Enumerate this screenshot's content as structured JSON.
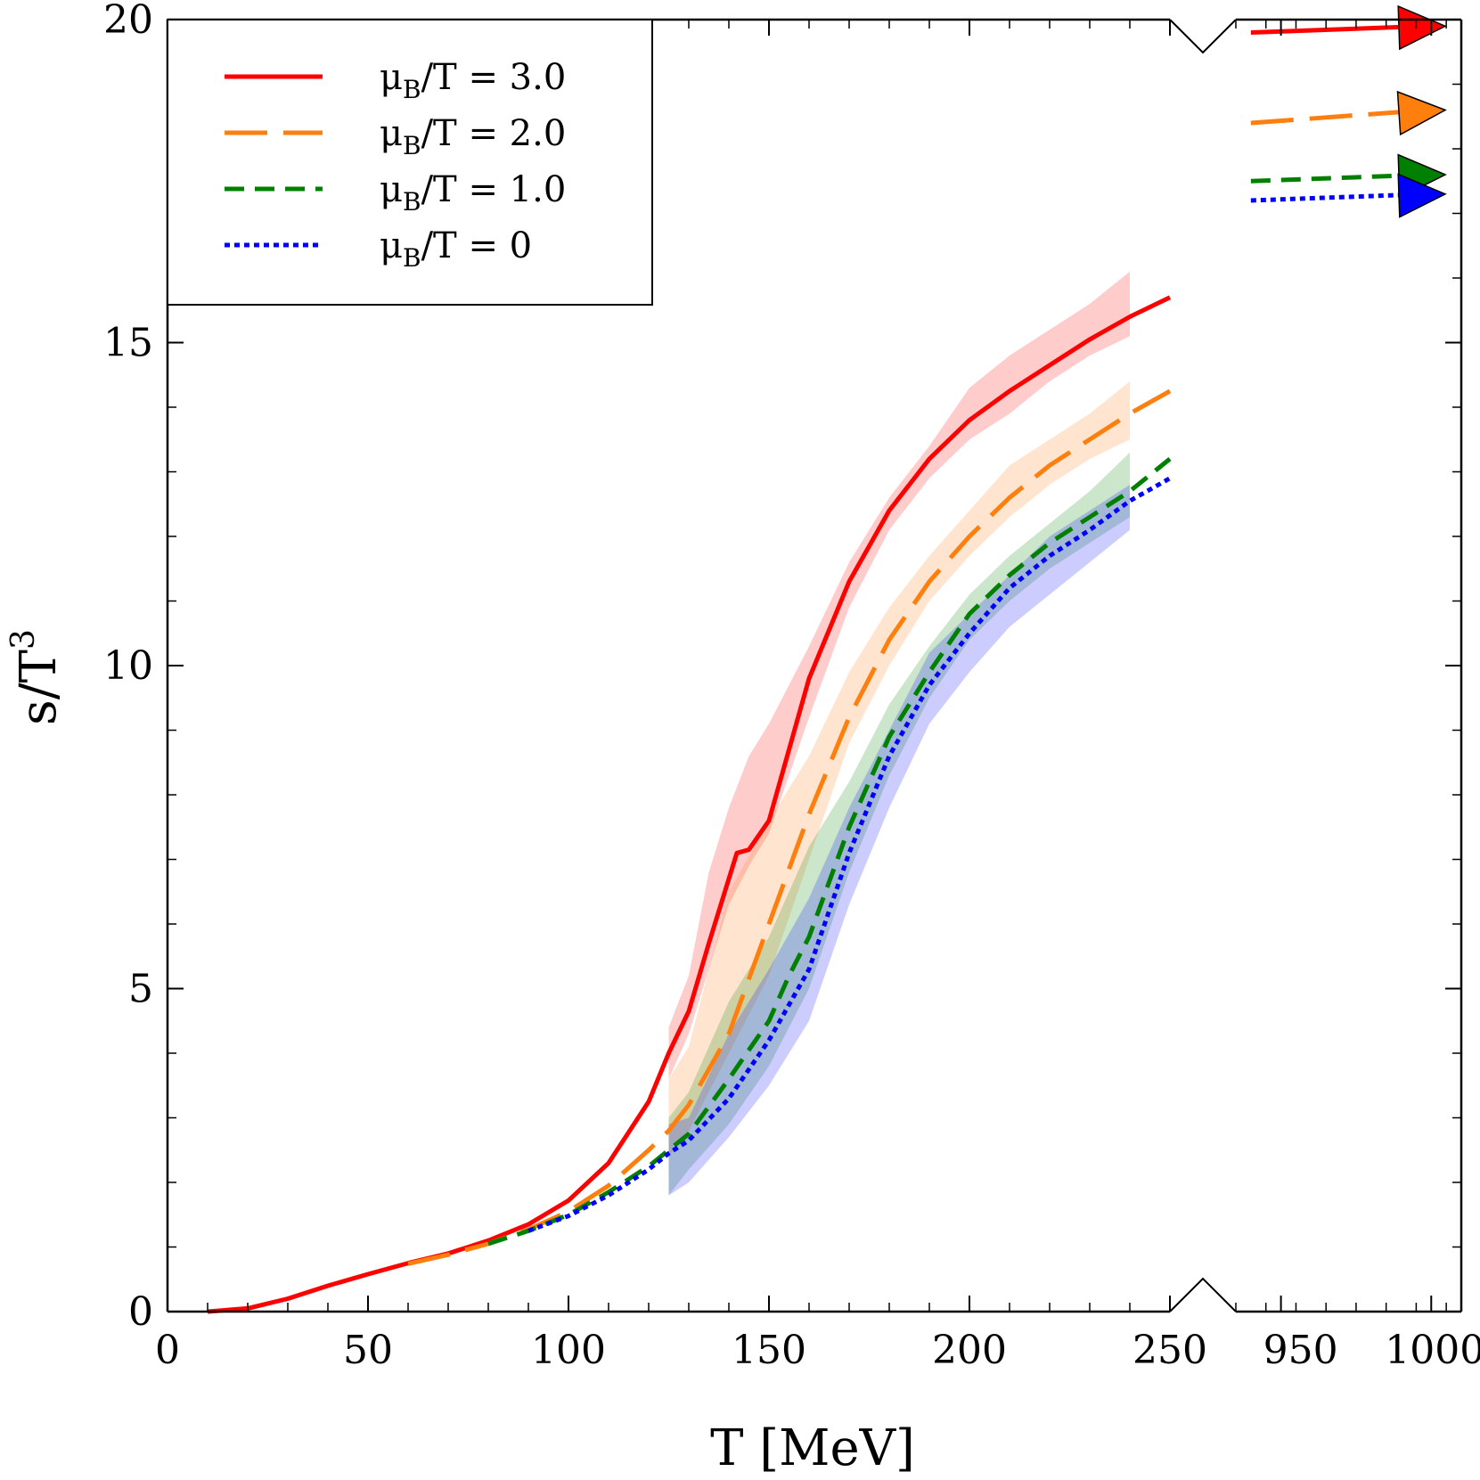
{
  "chart_data": {
    "type": "line",
    "xlabel": "T [MeV]",
    "ylabel": "s/T",
    "ylabel_sup": "3",
    "ylim": [
      0,
      20
    ],
    "segments": [
      {
        "xlim": [
          0,
          250
        ],
        "ticks": [
          0,
          50,
          100,
          150,
          200,
          250
        ],
        "tick_labels": [
          "0",
          "50",
          "100",
          "150",
          "200",
          "250"
        ]
      },
      {
        "xlim": [
          935,
          1010
        ],
        "ticks": [
          950,
          1000
        ],
        "tick_labels": [
          "950",
          "1000"
        ]
      }
    ],
    "y_ticks": [
      0,
      5,
      10,
      15,
      20
    ],
    "y_tick_labels": [
      "0",
      "5",
      "10",
      "15",
      "20"
    ],
    "grid": false,
    "legend_position": "top-left",
    "series": [
      {
        "name": "3.0",
        "color": "#ff0000",
        "dash": "solid",
        "line": [
          [
            10,
            0
          ],
          [
            20,
            0.05
          ],
          [
            30,
            0.2
          ],
          [
            40,
            0.4
          ],
          [
            50,
            0.58
          ],
          [
            60,
            0.75
          ],
          [
            70,
            0.9
          ],
          [
            80,
            1.1
          ],
          [
            90,
            1.35
          ],
          [
            100,
            1.72
          ],
          [
            110,
            2.3
          ],
          [
            120,
            3.25
          ],
          [
            125,
            4.0
          ],
          [
            130,
            4.65
          ],
          [
            135,
            5.7
          ],
          [
            140,
            6.7
          ],
          [
            142,
            7.1
          ],
          [
            145,
            7.15
          ],
          [
            150,
            7.6
          ],
          [
            155,
            8.7
          ],
          [
            160,
            9.8
          ],
          [
            170,
            11.3
          ],
          [
            180,
            12.4
          ],
          [
            190,
            13.2
          ],
          [
            200,
            13.8
          ],
          [
            210,
            14.25
          ],
          [
            220,
            14.65
          ],
          [
            230,
            15.05
          ],
          [
            240,
            15.4
          ],
          [
            250,
            15.7
          ]
        ],
        "band": [
          [
            125,
            3.6,
            4.4
          ],
          [
            130,
            4.3,
            5.2
          ],
          [
            135,
            5.3,
            6.8
          ],
          [
            140,
            6.3,
            7.8
          ],
          [
            145,
            6.9,
            8.6
          ],
          [
            150,
            7.4,
            9.1
          ],
          [
            160,
            9.2,
            10.3
          ],
          [
            170,
            10.9,
            11.6
          ],
          [
            180,
            12.1,
            12.6
          ],
          [
            190,
            12.9,
            13.4
          ],
          [
            200,
            13.5,
            14.3
          ],
          [
            210,
            13.9,
            14.8
          ],
          [
            220,
            14.4,
            15.2
          ],
          [
            230,
            14.8,
            15.6
          ],
          [
            240,
            15.1,
            16.1
          ]
        ],
        "arrow": [
          [
            940,
            19.8
          ],
          [
            1010,
            19.9
          ]
        ]
      },
      {
        "name": "2.0",
        "color": "#ff7f0e",
        "dash": "long",
        "line": [
          [
            60,
            0.74
          ],
          [
            70,
            0.88
          ],
          [
            80,
            1.05
          ],
          [
            90,
            1.27
          ],
          [
            100,
            1.55
          ],
          [
            110,
            1.95
          ],
          [
            120,
            2.5
          ],
          [
            125,
            2.8
          ],
          [
            130,
            3.2
          ],
          [
            140,
            4.3
          ],
          [
            150,
            6.0
          ],
          [
            160,
            7.7
          ],
          [
            170,
            9.2
          ],
          [
            180,
            10.4
          ],
          [
            190,
            11.3
          ],
          [
            200,
            12.0
          ],
          [
            210,
            12.6
          ],
          [
            220,
            13.1
          ],
          [
            230,
            13.5
          ],
          [
            240,
            13.9
          ],
          [
            250,
            14.25
          ]
        ],
        "band": [
          [
            125,
            2.4,
            3.6
          ],
          [
            130,
            2.8,
            4.1
          ],
          [
            140,
            4.0,
            6.5
          ],
          [
            150,
            5.2,
            7.6
          ],
          [
            160,
            7.0,
            8.6
          ],
          [
            170,
            8.8,
            9.9
          ],
          [
            180,
            10.0,
            10.9
          ],
          [
            190,
            11.0,
            11.7
          ],
          [
            200,
            11.7,
            12.4
          ],
          [
            210,
            12.3,
            13.1
          ],
          [
            220,
            12.8,
            13.5
          ],
          [
            230,
            13.2,
            13.9
          ],
          [
            240,
            13.5,
            14.4
          ]
        ],
        "arrow": [
          [
            940,
            18.4
          ],
          [
            1010,
            18.6
          ]
        ]
      },
      {
        "name": "1.0",
        "color": "#008000",
        "dash": "dash",
        "line": [
          [
            80,
            1.05
          ],
          [
            90,
            1.25
          ],
          [
            100,
            1.5
          ],
          [
            110,
            1.85
          ],
          [
            120,
            2.25
          ],
          [
            125,
            2.5
          ],
          [
            130,
            2.75
          ],
          [
            140,
            3.6
          ],
          [
            150,
            4.5
          ],
          [
            155,
            5.2
          ],
          [
            160,
            5.8
          ],
          [
            170,
            7.5
          ],
          [
            180,
            8.9
          ],
          [
            190,
            9.9
          ],
          [
            200,
            10.8
          ],
          [
            210,
            11.4
          ],
          [
            220,
            11.9
          ],
          [
            230,
            12.3
          ],
          [
            240,
            12.7
          ],
          [
            250,
            13.2
          ]
        ],
        "band": [
          [
            125,
            1.8,
            3.0
          ],
          [
            130,
            2.2,
            3.4
          ],
          [
            140,
            2.9,
            4.8
          ],
          [
            150,
            3.8,
            5.8
          ],
          [
            160,
            5.0,
            7.2
          ],
          [
            170,
            6.8,
            8.2
          ],
          [
            180,
            8.3,
            9.4
          ],
          [
            190,
            9.5,
            10.3
          ],
          [
            200,
            10.4,
            11.1
          ],
          [
            210,
            11.0,
            11.7
          ],
          [
            220,
            11.5,
            12.2
          ],
          [
            230,
            11.9,
            12.7
          ],
          [
            240,
            12.3,
            13.3
          ]
        ],
        "arrow": [
          [
            940,
            17.5
          ],
          [
            1010,
            17.6
          ]
        ]
      },
      {
        "name": "0",
        "color": "#0000ff",
        "dash": "dot",
        "line": [
          [
            90,
            1.25
          ],
          [
            100,
            1.48
          ],
          [
            110,
            1.8
          ],
          [
            120,
            2.2
          ],
          [
            125,
            2.45
          ],
          [
            130,
            2.65
          ],
          [
            140,
            3.3
          ],
          [
            150,
            4.2
          ],
          [
            160,
            5.3
          ],
          [
            170,
            7.1
          ],
          [
            180,
            8.6
          ],
          [
            190,
            9.7
          ],
          [
            200,
            10.5
          ],
          [
            210,
            11.2
          ],
          [
            220,
            11.7
          ],
          [
            230,
            12.1
          ],
          [
            240,
            12.55
          ],
          [
            250,
            12.9
          ]
        ],
        "band": [
          [
            125,
            1.8,
            2.9
          ],
          [
            130,
            2.0,
            3.0
          ],
          [
            140,
            2.7,
            4.3
          ],
          [
            150,
            3.5,
            5.3
          ],
          [
            160,
            4.5,
            6.4
          ],
          [
            170,
            6.3,
            7.8
          ],
          [
            180,
            7.8,
            9.0
          ],
          [
            190,
            9.1,
            10.2
          ],
          [
            200,
            9.9,
            10.8
          ],
          [
            210,
            10.6,
            11.4
          ],
          [
            220,
            11.1,
            12.0
          ],
          [
            230,
            11.6,
            12.4
          ],
          [
            240,
            12.1,
            12.8
          ]
        ],
        "arrow": [
          [
            940,
            17.2
          ],
          [
            1010,
            17.3
          ]
        ]
      }
    ]
  }
}
